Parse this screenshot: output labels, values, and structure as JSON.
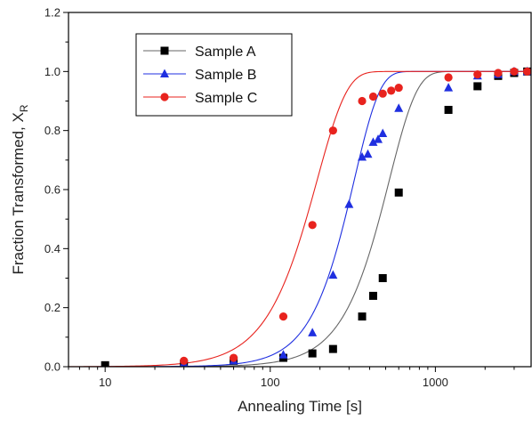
{
  "chart_data": {
    "type": "scatter",
    "title": "",
    "xlabel": "Annealing Time [s]",
    "ylabel_main": "Fraction Transformed, X",
    "ylabel_sub": "R",
    "x_scale": "log",
    "xlim": [
      6,
      3800
    ],
    "ylim": [
      0,
      1.2
    ],
    "x_ticks": [
      10,
      100,
      1000
    ],
    "x_tick_labels": [
      "10",
      "100",
      "1000"
    ],
    "y_ticks": [
      0.0,
      0.2,
      0.4,
      0.6,
      0.8,
      1.0,
      1.2
    ],
    "y_tick_labels": [
      "0.0",
      "0.2",
      "0.4",
      "0.6",
      "0.8",
      "1.0",
      "1.2"
    ],
    "grid": false,
    "legend_position": "top-left",
    "series": [
      {
        "name": "Sample A",
        "marker": "square",
        "color": "#000000",
        "line_color": "#666666",
        "points": [
          [
            10,
            0.005
          ],
          [
            30,
            0.01
          ],
          [
            60,
            0.02
          ],
          [
            120,
            0.03
          ],
          [
            180,
            0.045
          ],
          [
            240,
            0.06
          ],
          [
            360,
            0.17
          ],
          [
            420,
            0.24
          ],
          [
            480,
            0.3
          ],
          [
            600,
            0.59
          ],
          [
            1200,
            0.87
          ],
          [
            1800,
            0.95
          ],
          [
            2400,
            0.985
          ],
          [
            3000,
            0.995
          ],
          [
            3600,
            1.0
          ]
        ],
        "fit": {
          "n": 2.6,
          "k": 0.0019
        }
      },
      {
        "name": "Sample B",
        "marker": "triangle",
        "color": "#1f2fe0",
        "line_color": "#1f2fe0",
        "points": [
          [
            30,
            0.01
          ],
          [
            60,
            0.02
          ],
          [
            120,
            0.04
          ],
          [
            180,
            0.115
          ],
          [
            240,
            0.31
          ],
          [
            300,
            0.55
          ],
          [
            360,
            0.71
          ],
          [
            390,
            0.72
          ],
          [
            420,
            0.76
          ],
          [
            450,
            0.77
          ],
          [
            480,
            0.79
          ],
          [
            600,
            0.875
          ],
          [
            1200,
            0.945
          ],
          [
            1800,
            0.985
          ],
          [
            2400,
            0.99
          ],
          [
            3000,
            1.0
          ],
          [
            3600,
            1.0
          ]
        ],
        "fit": {
          "n": 2.8,
          "k": 0.0031
        }
      },
      {
        "name": "Sample C",
        "marker": "circle",
        "color": "#e8231e",
        "line_color": "#e8231e",
        "points": [
          [
            30,
            0.02
          ],
          [
            60,
            0.03
          ],
          [
            120,
            0.17
          ],
          [
            180,
            0.48
          ],
          [
            240,
            0.8
          ],
          [
            360,
            0.9
          ],
          [
            420,
            0.915
          ],
          [
            480,
            0.925
          ],
          [
            540,
            0.935
          ],
          [
            600,
            0.945
          ],
          [
            1200,
            0.98
          ],
          [
            1800,
            0.99
          ],
          [
            2400,
            0.995
          ],
          [
            3000,
            1.0
          ],
          [
            3600,
            1.0
          ]
        ],
        "fit": {
          "n": 2.4,
          "k": 0.0052
        }
      }
    ]
  }
}
